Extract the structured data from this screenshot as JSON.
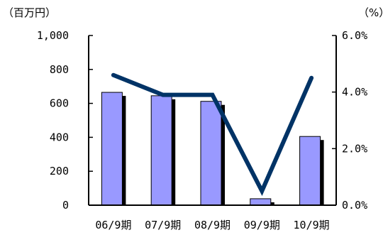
{
  "chart_data": {
    "type": "bar",
    "left_unit": "（百万円）",
    "right_unit": "（%）",
    "categories": [
      "06/9期",
      "07/9期",
      "08/9期",
      "09/9期",
      "10/9期"
    ],
    "series": [
      {
        "values": [
          665,
          645,
          612,
          38,
          405
        ],
        "axis": "left",
        "kind": "bar"
      },
      {
        "values": [
          4.6,
          3.9,
          3.9,
          0.5,
          4.5
        ],
        "axis": "right",
        "kind": "line"
      }
    ],
    "y_left": {
      "range": [
        0,
        1000
      ],
      "ticks": [
        "0",
        "200",
        "400",
        "600",
        "800",
        "1,000"
      ]
    },
    "y_right": {
      "range": [
        0,
        6
      ],
      "ticks": [
        "0.0%",
        "2.0%",
        "4.0%",
        "6.0%"
      ]
    },
    "grid": false,
    "legend": "none",
    "colors": {
      "bar": "#9999ff",
      "bar_shadow": "#000000",
      "line": "#003366",
      "axis": "#000000"
    }
  }
}
